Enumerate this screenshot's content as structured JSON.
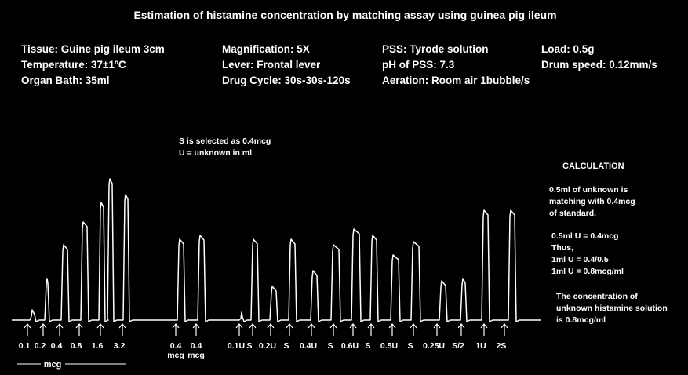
{
  "header": {
    "title": "Estimation of histamine concentration by matching assay using guinea pig ileum"
  },
  "parameters": {
    "rows": [
      [
        "Tissue: Guine pig ileum 3cm",
        "Magnification: 5X",
        "PSS: Tyrode solution",
        "Load: 0.5g"
      ],
      [
        "Temperature: 37±1ºC",
        "Lever: Frontal lever",
        "pH of PSS: 7.3",
        "Drum speed: 0.12mm/s"
      ],
      [
        "Organ Bath: 35ml",
        "Drug Cycle: 30s-30s-120s",
        "Aeration: Room air 1bubble/s"
      ]
    ]
  },
  "note": {
    "lines": [
      "S is selected as 0.4mcg",
      "U = unknown in ml"
    ]
  },
  "calculation": {
    "title": "CALCULATION",
    "paragraphs": [
      [
        "0.5ml of unknown is",
        "matching with 0.4mcg",
        "of standard."
      ],
      [
        "0.5ml U = 0.4mcg",
        "Thus,",
        "1ml U = 0.4/0.5",
        "1ml U = 0.8mcg/ml"
      ],
      [
        "The concentration of",
        "unknown histamine solution",
        "is 0.8mcg/ml"
      ]
    ]
  },
  "doses": [
    [
      "0.1"
    ],
    [
      "0.2"
    ],
    [
      "0.4"
    ],
    [
      "0.8"
    ],
    [
      "1.6"
    ],
    [
      "3.2"
    ],
    [
      "0.4",
      "mcg"
    ],
    [
      "0.4",
      "mcg"
    ],
    [
      "0.1U"
    ],
    [
      "S"
    ],
    [
      "0.2U"
    ],
    [
      "S"
    ],
    [
      "0.4U"
    ],
    [
      "S"
    ],
    [
      "0.6U"
    ],
    [
      "S"
    ],
    [
      "0.5U"
    ],
    [
      "S"
    ],
    [
      "0.25U"
    ],
    [
      "S/2"
    ],
    [
      "1U"
    ],
    [
      "2S"
    ]
  ],
  "group_label": "mcg"
}
